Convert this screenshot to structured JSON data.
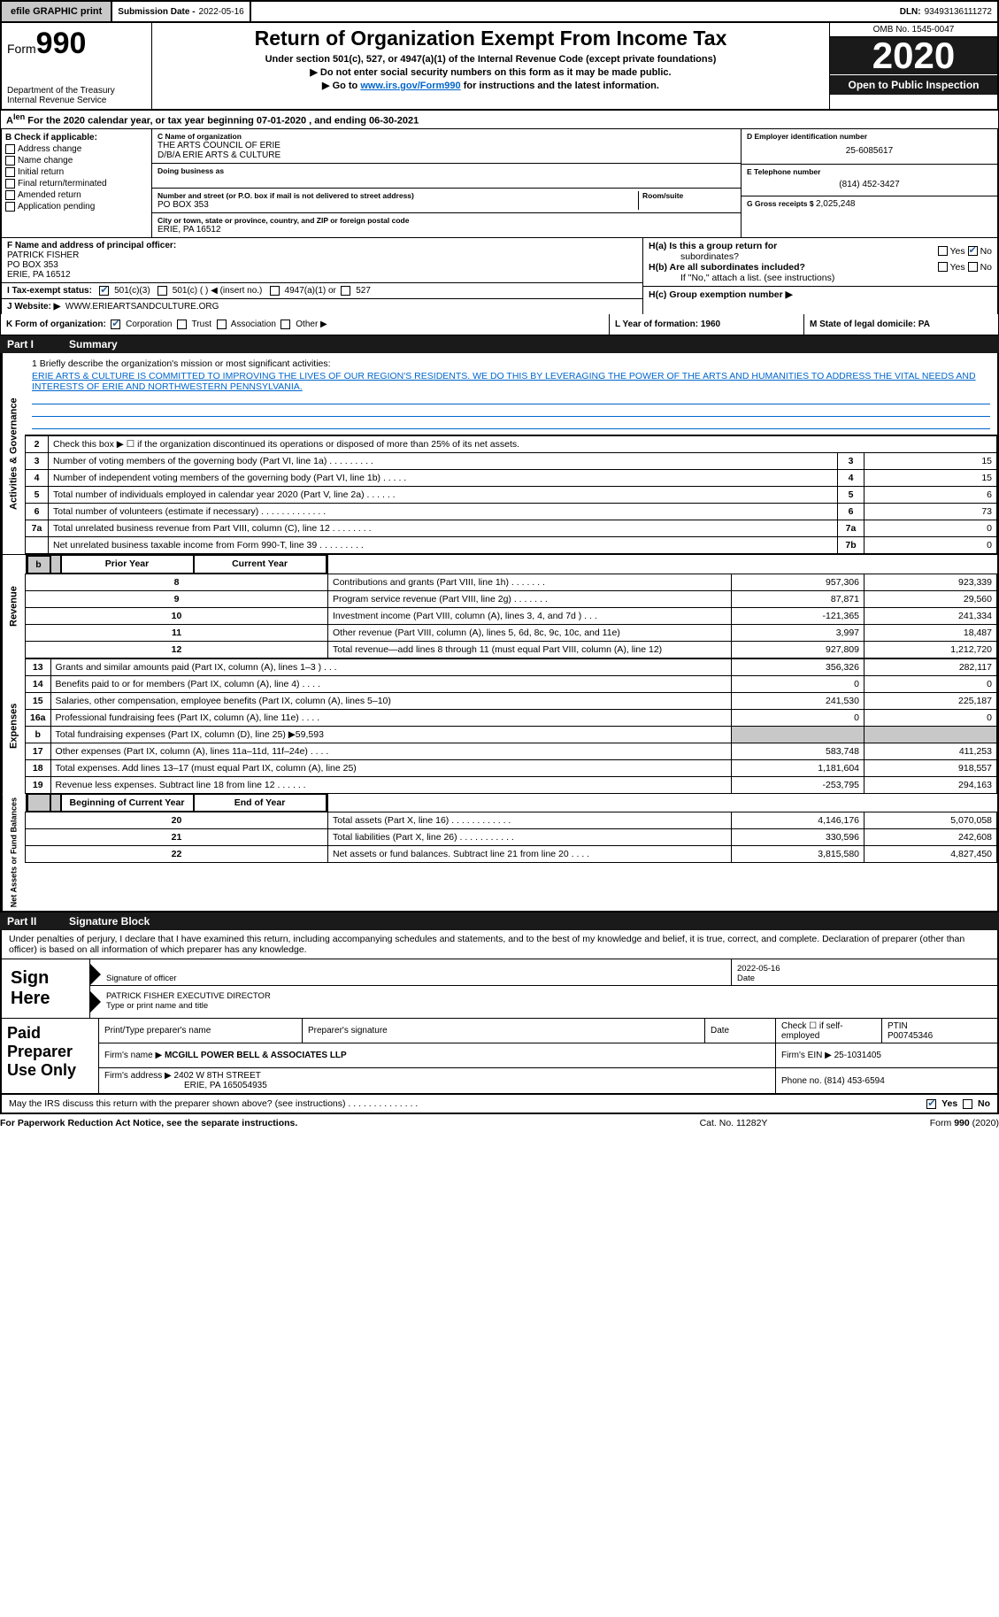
{
  "topbar": {
    "efile_btn": "efile GRAPHIC print",
    "sub_date_label": "Submission Date - ",
    "sub_date": "2022-05-16",
    "dln_label": "DLN: ",
    "dln": "93493136111272"
  },
  "hdr": {
    "form_word": "Form",
    "form_num": "990",
    "title": "Return of Organization Exempt From Income Tax",
    "subtitle": "Under section 501(c), 527, or 4947(a)(1) of the Internal Revenue Code (except private foundations)",
    "note1": "Do not enter social security numbers on this form as it may be made public.",
    "note2_pre": "Go to ",
    "note2_link": "www.irs.gov/Form990",
    "note2_post": " for instructions and the latest information.",
    "dept": "Department of the Treasury\nInternal Revenue Service",
    "omb": "OMB No. 1545-0047",
    "year": "2020",
    "inspect": "Open to Public Inspection"
  },
  "period": "For the 2020 calendar year, or tax year beginning 07-01-2020    , and ending 06-30-2021",
  "boxB": {
    "header": "B Check if applicable:",
    "items": [
      "Address change",
      "Name change",
      "Initial return",
      "Final return/terminated",
      "Amended return",
      "Application pending"
    ]
  },
  "boxC": {
    "name_lbl": "C Name of organization",
    "name1": "THE ARTS COUNCIL OF ERIE",
    "name2": "D/B/A ERIE ARTS & CULTURE",
    "dba_lbl": "Doing business as",
    "addr_lbl": "Number and street (or P.O. box if mail is not delivered to street address)",
    "room_lbl": "Room/suite",
    "addr": "PO BOX 353",
    "city_lbl": "City or town, state or province, country, and ZIP or foreign postal code",
    "city": "ERIE, PA  16512"
  },
  "boxDE": {
    "d_lbl": "D Employer identification number",
    "ein": "25-6085617",
    "e_lbl": "E Telephone number",
    "phone": "(814) 452-3427",
    "g_lbl": "G Gross receipts $ ",
    "gross": "2,025,248"
  },
  "boxF": {
    "lbl": "F Name and address of principal officer:",
    "name": "PATRICK FISHER",
    "addr1": "PO BOX 353",
    "addr2": "ERIE, PA  16512"
  },
  "boxH": {
    "a": "H(a)  Is this a group return for",
    "a2": "subordinates?",
    "b": "H(b)  Are all subordinates included?",
    "b2": "If \"No,\" attach a list. (see instructions)",
    "c": "H(c)  Group exemption number ▶",
    "yes": "Yes",
    "no": "No"
  },
  "rowI": {
    "lbl": "I    Tax-exempt status:",
    "opts": [
      "501(c)(3)",
      "501(c) (   ) ◀ (insert no.)",
      "4947(a)(1) or",
      "527"
    ]
  },
  "rowJ": {
    "lbl": "J   Website: ▶",
    "val": "WWW.ERIEARTSANDCULTURE.ORG"
  },
  "rowK": {
    "lbl": "K Form of organization:",
    "opts": [
      "Corporation",
      "Trust",
      "Association",
      "Other ▶"
    ],
    "L": "L Year of formation: 1960",
    "M": "M State of legal domicile: PA"
  },
  "part1": {
    "num": "Part I",
    "title": "Summary"
  },
  "mission": {
    "q": "1   Briefly describe the organization's mission or most significant activities:",
    "ans": "ERIE ARTS & CULTURE IS COMMITTED TO IMPROVING THE LIVES OF OUR REGION'S RESIDENTS. WE DO THIS BY LEVERAGING THE POWER OF THE ARTS AND HUMANITIES TO ADDRESS THE VITAL NEEDS AND INTERESTS OF ERIE AND NORTHWESTERN PENNSYLVANIA."
  },
  "gov_lines": [
    {
      "n": "2",
      "t": "Check this box ▶ ☐  if the organization discontinued its operations or disposed of more than 25% of its net assets."
    },
    {
      "n": "3",
      "t": "Number of voting members of the governing body (Part VI, line 1a)   .    .    .    .    .    .    .    .    .",
      "k": "3",
      "v": "15"
    },
    {
      "n": "4",
      "t": "Number of independent voting members of the governing body (Part VI, line 1b)   .    .    .    .    .",
      "k": "4",
      "v": "15"
    },
    {
      "n": "5",
      "t": "Total number of individuals employed in calendar year 2020 (Part V, line 2a)   .    .    .    .    .    .",
      "k": "5",
      "v": "6"
    },
    {
      "n": "6",
      "t": "Total number of volunteers (estimate if necessary)   .    .    .    .    .    .    .    .    .    .    .    .    .",
      "k": "6",
      "v": "73"
    },
    {
      "n": "7a",
      "t": "Total unrelated business revenue from Part VIII, column (C), line 12   .    .    .    .    .    .    .    .",
      "k": "7a",
      "v": "0"
    },
    {
      "n": "",
      "t": "Net unrelated business taxable income from Form 990-T, line 39   .    .    .    .    .    .    .    .    .",
      "k": "7b",
      "v": "0"
    }
  ],
  "col_hdrs": {
    "prior": "Prior Year",
    "current": "Current Year"
  },
  "revenue": [
    {
      "n": "8",
      "t": "Contributions and grants (Part VIII, line 1h)   .    .    .    .    .    .    .",
      "p": "957,306",
      "c": "923,339"
    },
    {
      "n": "9",
      "t": "Program service revenue (Part VIII, line 2g)   .    .    .    .    .    .    .",
      "p": "87,871",
      "c": "29,560"
    },
    {
      "n": "10",
      "t": "Investment income (Part VIII, column (A), lines 3, 4, and 7d )   .    .    .",
      "p": "-121,365",
      "c": "241,334"
    },
    {
      "n": "11",
      "t": "Other revenue (Part VIII, column (A), lines 5, 6d, 8c, 9c, 10c, and 11e)",
      "p": "3,997",
      "c": "18,487"
    },
    {
      "n": "12",
      "t": "Total revenue—add lines 8 through 11 (must equal Part VIII, column (A), line 12)",
      "p": "927,809",
      "c": "1,212,720"
    }
  ],
  "expenses": [
    {
      "n": "13",
      "t": "Grants and similar amounts paid (Part IX, column (A), lines 1–3 )   .    .    .",
      "p": "356,326",
      "c": "282,117"
    },
    {
      "n": "14",
      "t": "Benefits paid to or for members (Part IX, column (A), line 4)   .    .    .    .",
      "p": "0",
      "c": "0"
    },
    {
      "n": "15",
      "t": "Salaries, other compensation, employee benefits (Part IX, column (A), lines 5–10)",
      "p": "241,530",
      "c": "225,187"
    },
    {
      "n": "16a",
      "t": "Professional fundraising fees (Part IX, column (A), line 11e)   .    .    .    .",
      "p": "0",
      "c": "0"
    },
    {
      "n": "b",
      "t": "Total fundraising expenses (Part IX, column (D), line 25) ▶59,593",
      "shade": true
    },
    {
      "n": "17",
      "t": "Other expenses (Part IX, column (A), lines 11a–11d, 11f–24e)   .    .    .    .",
      "p": "583,748",
      "c": "411,253"
    },
    {
      "n": "18",
      "t": "Total expenses. Add lines 13–17 (must equal Part IX, column (A), line 25)",
      "p": "1,181,604",
      "c": "918,557"
    },
    {
      "n": "19",
      "t": "Revenue less expenses. Subtract line 18 from line 12   .    .    .    .    .    .",
      "p": "-253,795",
      "c": "294,163"
    }
  ],
  "net_hdrs": {
    "beg": "Beginning of Current Year",
    "end": "End of Year"
  },
  "netassets": [
    {
      "n": "20",
      "t": "Total assets (Part X, line 16)   .    .    .    .    .    .    .    .    .    .    .    .",
      "p": "4,146,176",
      "c": "5,070,058"
    },
    {
      "n": "21",
      "t": "Total liabilities (Part X, line 26)   .    .    .    .    .    .    .    .    .    .    .",
      "p": "330,596",
      "c": "242,608"
    },
    {
      "n": "22",
      "t": "Net assets or fund balances. Subtract line 21 from line 20   .    .    .    .",
      "p": "3,815,580",
      "c": "4,827,450"
    }
  ],
  "side_labels": {
    "gov": "Activities & Governance",
    "rev": "Revenue",
    "exp": "Expenses",
    "net": "Net Assets or Fund Balances"
  },
  "part2": {
    "num": "Part II",
    "title": "Signature Block"
  },
  "sig": {
    "intro": "Under penalties of perjury, I declare that I have examined this return, including accompanying schedules and statements, and to the best of my knowledge and belief, it is true, correct, and complete. Declaration of preparer (other than officer) is based on all information of which preparer has any knowledge.",
    "sign_here": "Sign Here",
    "sig_officer": "Signature of officer",
    "date_lbl": "Date",
    "date": "2022-05-16",
    "name": "PATRICK FISHER  EXECUTIVE DIRECTOR",
    "name_lbl": "Type or print name and title"
  },
  "paid": {
    "label": "Paid Preparer Use Only",
    "h1": "Print/Type preparer's name",
    "h2": "Preparer's signature",
    "h3": "Date",
    "h4_a": "Check ☐ if self-employed",
    "h5": "PTIN",
    "ptin": "P00745346",
    "firm_lbl": "Firm's name    ▶",
    "firm": "MCGILL POWER BELL & ASSOCIATES LLP",
    "ein_lbl": "Firm's EIN ▶",
    "ein": "25-1031405",
    "addr_lbl": "Firm's address ▶",
    "addr1": "2402 W 8TH STREET",
    "addr2": "ERIE, PA  165054935",
    "phone_lbl": "Phone no.",
    "phone": "(814) 453-6594"
  },
  "discuss": {
    "q": "May the IRS discuss this return with the preparer shown above? (see instructions)   .    .    .    .    .    .    .    .    .    .    .    .    .    .",
    "yes": "Yes",
    "no": "No"
  },
  "bottom": {
    "pra": "For Paperwork Reduction Act Notice, see the separate instructions.",
    "cat": "Cat. No. 11282Y",
    "form": "Form 990 (2020)"
  }
}
